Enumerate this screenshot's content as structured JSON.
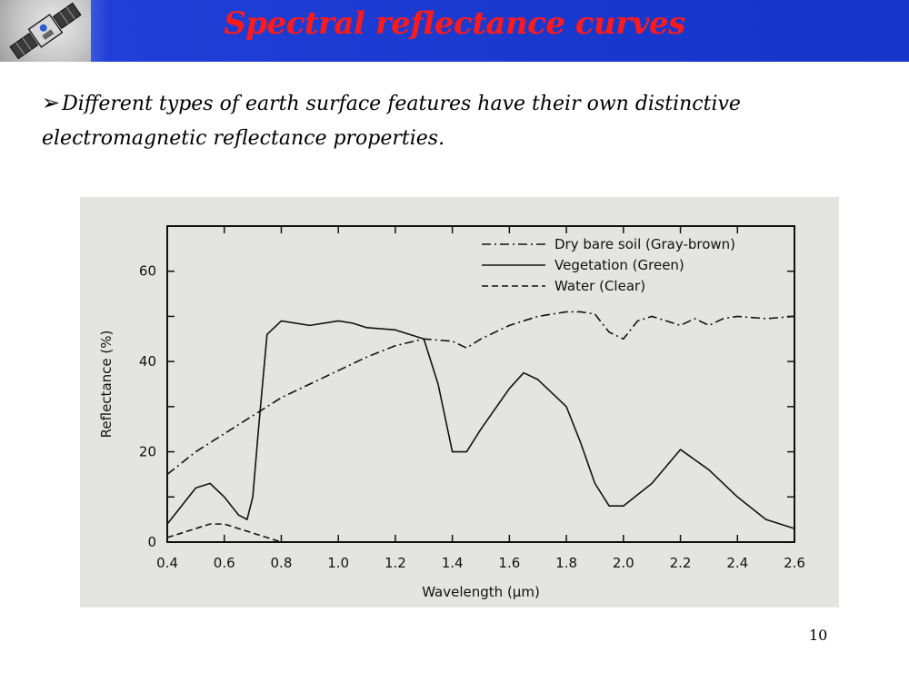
{
  "slide": {
    "title": "Spectral reflectance curves",
    "bullet_text": "Different types of earth surface features have their own distinctive electromagnetic reflectance properties.",
    "page_number": "10",
    "title_color": "#ff1a1a",
    "header_color": "#1a3ad0"
  },
  "chart_data": {
    "type": "line",
    "title": "",
    "xlabel": "Wavelength (μm)",
    "ylabel": "Reflectance (%)",
    "xlim": [
      0.4,
      2.6
    ],
    "ylim": [
      0,
      70
    ],
    "x_ticks": [
      0.4,
      0.6,
      0.8,
      1.0,
      1.2,
      1.4,
      1.6,
      1.8,
      2.0,
      2.2,
      2.4,
      2.6
    ],
    "x_tick_labels": [
      "0.4",
      "0.6",
      "0.8",
      "1.0",
      "1.2",
      "1.4",
      "1.6",
      "1.8",
      "2.0",
      "2.2",
      "2.4",
      "2.6"
    ],
    "y_ticks": [
      0,
      10,
      20,
      30,
      40,
      50,
      60
    ],
    "y_tick_labels": [
      "0",
      "",
      "20",
      "",
      "40",
      "",
      "60"
    ],
    "legend_position": "top-right",
    "series": [
      {
        "name": "Dry bare soil (Gray-brown)",
        "dash": "dashdot",
        "x": [
          0.4,
          0.5,
          0.6,
          0.7,
          0.8,
          0.9,
          1.0,
          1.1,
          1.2,
          1.3,
          1.4,
          1.45,
          1.5,
          1.6,
          1.7,
          1.8,
          1.85,
          1.9,
          1.95,
          2.0,
          2.05,
          2.1,
          2.15,
          2.2,
          2.25,
          2.3,
          2.35,
          2.4,
          2.5,
          2.6
        ],
        "y": [
          15,
          20,
          24,
          28,
          32,
          35,
          38,
          41,
          43.5,
          45,
          44.5,
          43,
          45,
          48,
          50,
          51,
          51,
          50.5,
          46.5,
          45,
          49,
          50,
          49,
          48,
          49.5,
          48,
          49.5,
          50,
          49.5,
          50
        ]
      },
      {
        "name": "Vegetation (Green)",
        "dash": "solid",
        "x": [
          0.4,
          0.45,
          0.5,
          0.55,
          0.6,
          0.65,
          0.68,
          0.7,
          0.72,
          0.75,
          0.8,
          0.9,
          1.0,
          1.05,
          1.1,
          1.2,
          1.3,
          1.35,
          1.4,
          1.45,
          1.5,
          1.6,
          1.65,
          1.7,
          1.8,
          1.85,
          1.9,
          1.95,
          2.0,
          2.1,
          2.2,
          2.3,
          2.4,
          2.5,
          2.6
        ],
        "y": [
          4,
          8,
          12,
          13,
          10,
          6,
          5,
          10,
          25,
          46,
          49,
          48,
          49,
          48.5,
          47.5,
          47,
          45,
          35,
          20,
          20,
          25,
          34,
          37.5,
          36,
          30,
          22,
          13,
          8,
          8,
          13,
          20.5,
          16,
          10,
          5,
          3
        ]
      },
      {
        "name": "Water (Clear)",
        "dash": "dashed",
        "x": [
          0.4,
          0.45,
          0.5,
          0.55,
          0.6,
          0.65,
          0.7,
          0.75,
          0.8
        ],
        "y": [
          1,
          2,
          3,
          4,
          4,
          3,
          2,
          1,
          0
        ]
      }
    ]
  }
}
